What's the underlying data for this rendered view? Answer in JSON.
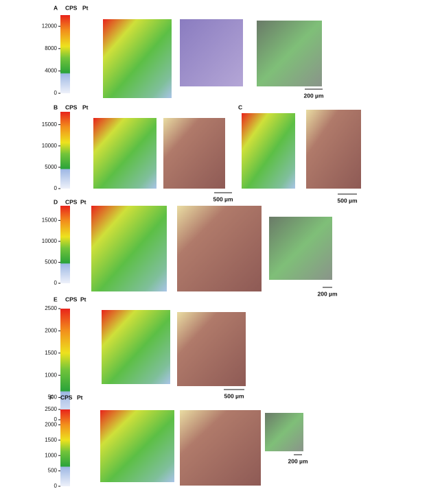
{
  "panels": [
    {
      "label": "A",
      "cps_label": "CPS",
      "element": "Pt",
      "colorbar": {
        "range": [
          0,
          14000
        ],
        "ticks": [
          0,
          4000,
          8000,
          12000
        ]
      },
      "scale_bar": "200 µm"
    },
    {
      "label": "B",
      "cps_label": "CPS",
      "element": "Pt",
      "colorbar": {
        "range": [
          0,
          18000
        ],
        "ticks": [
          0,
          5000,
          10000,
          15000
        ]
      },
      "scale_bar": "500 µm"
    },
    {
      "label": "C",
      "scale_bar": "500 µm"
    },
    {
      "label": "D",
      "cps_label": "CPS",
      "element": "Pt",
      "colorbar": {
        "range": [
          0,
          18500
        ],
        "ticks": [
          0,
          5000,
          10000,
          15000
        ]
      },
      "scale_bar": "200 µm"
    },
    {
      "label": "E",
      "cps_label": "CPS",
      "element": "Pt",
      "colorbar": {
        "range": [
          0,
          2500
        ],
        "ticks": [
          0,
          500,
          1000,
          1500,
          2000,
          2500
        ]
      },
      "scale_bar": "500 µm"
    },
    {
      "label": "F",
      "cps_label": "CPS",
      "element": "Pt",
      "colorbar": {
        "range": [
          0,
          2500
        ],
        "ticks": [
          0,
          500,
          1000,
          1500,
          2000,
          2500
        ]
      },
      "scale_bar": "200 µm"
    }
  ]
}
